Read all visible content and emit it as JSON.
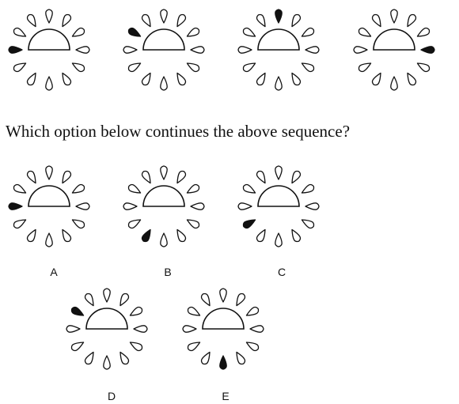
{
  "question": "Which option below continues the above sequence?",
  "petal_count": 12,
  "colors": {
    "ink": "#111111",
    "fill_highlight": "#111111",
    "fill_normal": "#ffffff"
  },
  "sequence": [
    {
      "highlight_angle_deg": 180
    },
    {
      "highlight_angle_deg": 150
    },
    {
      "highlight_angle_deg": 90
    },
    {
      "highlight_angle_deg": 0
    }
  ],
  "options": [
    {
      "label": "A",
      "highlight_angle_deg": 180
    },
    {
      "label": "B",
      "highlight_angle_deg": 240
    },
    {
      "label": "C",
      "highlight_angle_deg": 210
    },
    {
      "label": "D",
      "highlight_angle_deg": 150
    },
    {
      "label": "E",
      "highlight_angle_deg": 270
    }
  ]
}
